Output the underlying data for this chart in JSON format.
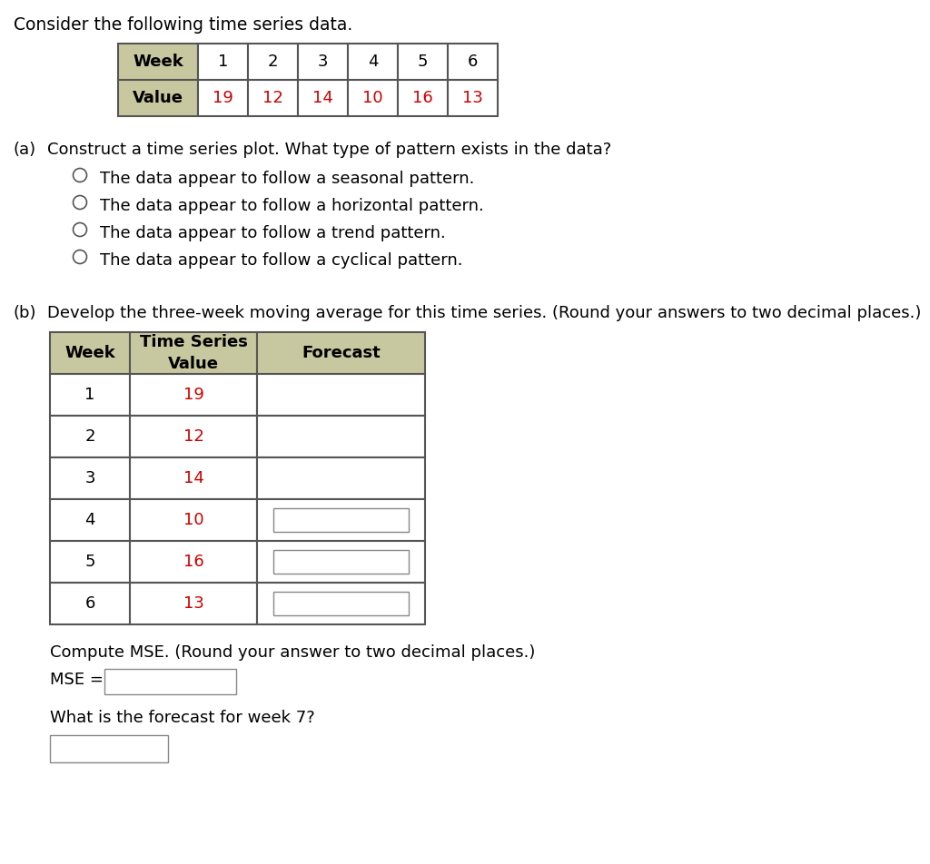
{
  "title": "Consider the following time series data.",
  "top_table": {
    "headers": [
      "1",
      "2",
      "3",
      "4",
      "5",
      "6"
    ],
    "row_label": "Value",
    "values": [
      "19",
      "12",
      "14",
      "10",
      "16",
      "13"
    ],
    "header_bg": "#c8c8a0",
    "cell_bg": "#ffffff",
    "border_color": "#555555",
    "text_color_header": "#000000",
    "text_color_values": "#cc0000"
  },
  "part_a": {
    "label": "(a)",
    "question": "Construct a time series plot. What type of pattern exists in the data?",
    "options": [
      "The data appear to follow a seasonal pattern.",
      "The data appear to follow a horizontal pattern.",
      "The data appear to follow a trend pattern.",
      "The data appear to follow a cyclical pattern."
    ]
  },
  "part_b": {
    "label": "(b)",
    "question": "Develop the three-week moving average for this time series. (Round your answers to two decimal places.)",
    "table": {
      "col1_header": "Week",
      "col2_header": "Time Series\nValue",
      "col3_header": "Forecast",
      "weeks": [
        "1",
        "2",
        "3",
        "4",
        "5",
        "6"
      ],
      "values": [
        "19",
        "12",
        "14",
        "10",
        "16",
        "13"
      ],
      "forecast_boxes": [
        false,
        false,
        false,
        true,
        true,
        true
      ],
      "header_bg": "#c8c8a0",
      "cell_bg": "#ffffff",
      "border_color": "#555555",
      "text_color_values": "#cc0000",
      "text_color_week": "#000000"
    },
    "mse_label": "Compute MSE. (Round your answer to two decimal places.)",
    "mse_prefix": "MSE =",
    "week7_label": "What is the forecast for week 7?"
  },
  "font_family": "DejaVu Sans",
  "bg_color": "#ffffff",
  "text_color": "#000000"
}
